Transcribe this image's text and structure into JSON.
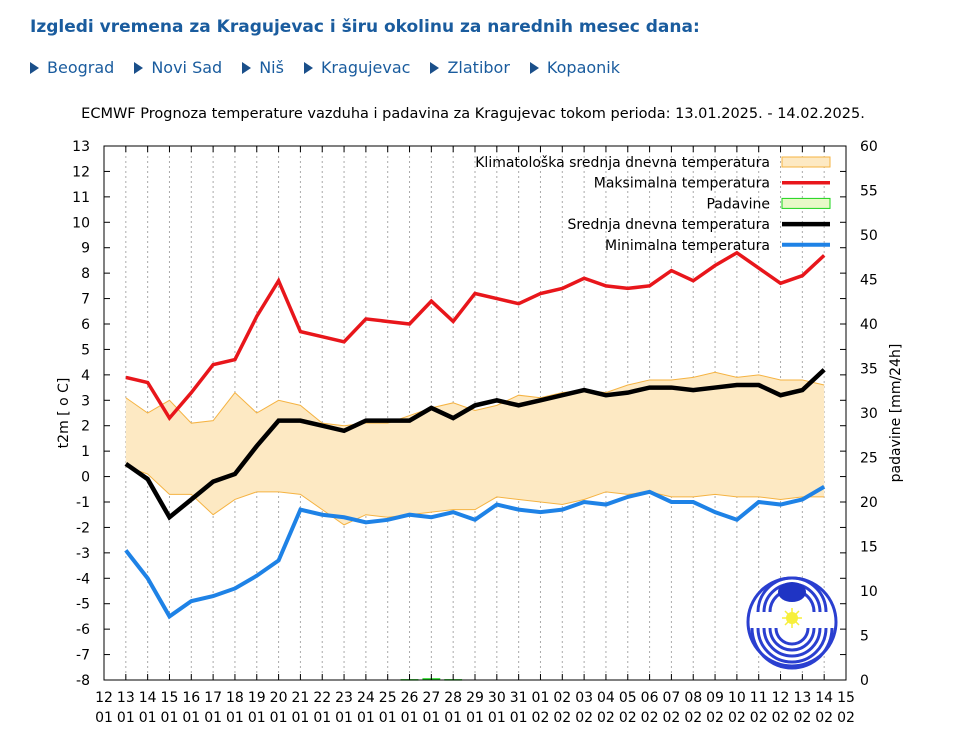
{
  "header": {
    "title": "Izgledi vremena za Kragujevac i širu okolinu za narednih mesec dana:"
  },
  "nav": {
    "items": [
      {
        "label": "Beograd",
        "icon": "arrow-right-icon"
      },
      {
        "label": "Novi Sad",
        "icon": "arrow-right-icon"
      },
      {
        "label": "Niš",
        "icon": "arrow-right-icon"
      },
      {
        "label": "Kragujevac",
        "icon": "arrow-right-icon"
      },
      {
        "label": "Zlatibor",
        "icon": "arrow-right-icon"
      },
      {
        "label": "Kopaonik",
        "icon": "arrow-right-icon"
      }
    ]
  },
  "colors": {
    "link": "#1a5c9e",
    "clim_fill": "#fde9c3",
    "clim_stroke": "#f5b342",
    "max": "#e8161b",
    "mean": "#000000",
    "min": "#1e82e6",
    "precip": "#1bd41b"
  },
  "chart_data": {
    "type": "line",
    "title": "ECMWF Prognoza temperature vazduha i padavina za Kragujevac tokom perioda: 13.01.2025. - 14.02.2025.",
    "ylabel": "t2m [ o C]",
    "y2label": "padavine [mm/24h]",
    "ylim": [
      -8,
      13
    ],
    "y2lim": [
      0,
      60
    ],
    "yticks": [
      "13",
      "12",
      "11",
      "10",
      "9",
      "8",
      "7",
      "6",
      "5",
      "4",
      "3",
      "2",
      "1",
      "0",
      "-1",
      "-2",
      "-3",
      "-4",
      "-5",
      "-6",
      "-7",
      "-8"
    ],
    "y2ticks": [
      "60",
      "55",
      "50",
      "45",
      "40",
      "35",
      "30",
      "25",
      "20",
      "15",
      "10",
      "5",
      "0"
    ],
    "x_day": [
      "12",
      "13",
      "14",
      "15",
      "16",
      "17",
      "18",
      "19",
      "20",
      "21",
      "22",
      "23",
      "24",
      "25",
      "26",
      "27",
      "28",
      "29",
      "30",
      "31",
      "01",
      "02",
      "03",
      "04",
      "05",
      "06",
      "07",
      "08",
      "09",
      "10",
      "11",
      "12",
      "13",
      "14",
      "15"
    ],
    "x_month": [
      "01",
      "01",
      "01",
      "01",
      "01",
      "01",
      "01",
      "01",
      "01",
      "01",
      "01",
      "01",
      "01",
      "01",
      "01",
      "01",
      "01",
      "01",
      "01",
      "01",
      "02",
      "02",
      "02",
      "02",
      "02",
      "02",
      "02",
      "02",
      "02",
      "02",
      "02",
      "02",
      "02",
      "02",
      "02"
    ],
    "grid": "vertical-dotted",
    "legend_position": "top-right",
    "legend": [
      "Klimatološka srednja dnevna temperatura",
      "Maksimalna temperatura",
      "Padavine",
      "Srednja dnevna temperatura",
      "Minimalna temperatura"
    ],
    "series": [
      {
        "name": "Maksimalna temperatura",
        "start_index": 1,
        "values": [
          3.9,
          3.7,
          2.3,
          3.3,
          4.4,
          4.6,
          6.3,
          7.7,
          5.7,
          5.5,
          5.3,
          6.2,
          6.1,
          6.0,
          6.9,
          6.1,
          7.2,
          7.0,
          6.8,
          7.2,
          7.4,
          7.8,
          7.5,
          7.4,
          7.5,
          8.1,
          7.7,
          8.3,
          8.8,
          8.2,
          7.6,
          7.9,
          8.7
        ]
      },
      {
        "name": "Srednja dnevna temperatura",
        "start_index": 1,
        "values": [
          0.5,
          -0.1,
          -1.6,
          -0.9,
          -0.2,
          0.1,
          1.2,
          2.2,
          2.2,
          2.0,
          1.8,
          2.2,
          2.2,
          2.2,
          2.7,
          2.3,
          2.8,
          3.0,
          2.8,
          3.0,
          3.2,
          3.4,
          3.2,
          3.3,
          3.5,
          3.5,
          3.4,
          3.5,
          3.6,
          3.6,
          3.2,
          3.4,
          4.2
        ]
      },
      {
        "name": "Minimalna temperatura",
        "start_index": 1,
        "values": [
          -2.9,
          -4.0,
          -5.5,
          -4.9,
          -4.7,
          -4.4,
          -3.9,
          -3.3,
          -1.3,
          -1.5,
          -1.6,
          -1.8,
          -1.7,
          -1.5,
          -1.6,
          -1.4,
          -1.7,
          -1.1,
          -1.3,
          -1.4,
          -1.3,
          -1.0,
          -1.1,
          -0.8,
          -0.6,
          -1.0,
          -1.0,
          -1.4,
          -1.7,
          -1.0,
          -1.1,
          -0.9,
          -0.4
        ]
      },
      {
        "name": "Klimatološka srednja dnevna temperatura",
        "start_index": 1,
        "upper": [
          3.1,
          2.5,
          3.0,
          2.1,
          2.2,
          3.3,
          2.5,
          3.0,
          2.8,
          2.1,
          2.0,
          2.1,
          2.1,
          2.4,
          2.7,
          2.9,
          2.6,
          2.8,
          3.2,
          3.1,
          3.3,
          3.4,
          3.3,
          3.6,
          3.8,
          3.8,
          3.9,
          4.1,
          3.9,
          4.0,
          3.8,
          3.8,
          3.6
        ],
        "lower": [
          0.4,
          0.1,
          -0.7,
          -0.7,
          -1.5,
          -0.9,
          -0.6,
          -0.6,
          -0.7,
          -1.3,
          -1.9,
          -1.5,
          -1.6,
          -1.5,
          -1.4,
          -1.3,
          -1.3,
          -0.8,
          -0.9,
          -1.0,
          -1.1,
          -0.9,
          -0.6,
          -0.7,
          -0.6,
          -0.8,
          -0.8,
          -0.7,
          -0.8,
          -0.8,
          -0.9,
          -0.8,
          -0.8
        ]
      },
      {
        "name": "Padavine",
        "start_index": 1,
        "values": [
          0,
          0,
          0,
          0,
          0,
          0,
          0,
          0,
          0,
          0,
          0,
          0,
          0,
          0.1,
          0.2,
          0.1,
          0,
          0,
          0,
          0,
          0,
          0,
          0,
          0,
          0,
          0,
          0,
          0,
          0,
          0,
          0,
          0,
          0
        ]
      }
    ]
  }
}
